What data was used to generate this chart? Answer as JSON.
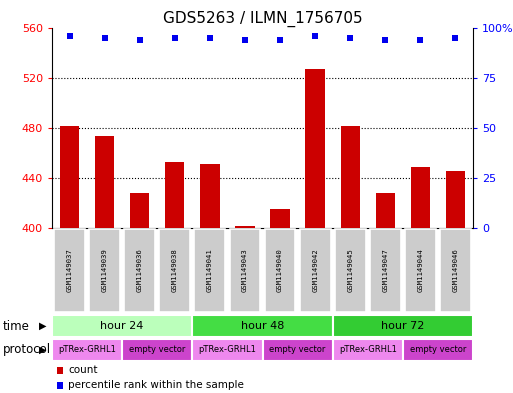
{
  "title": "GDS5263 / ILMN_1756705",
  "samples": [
    "GSM1149037",
    "GSM1149039",
    "GSM1149036",
    "GSM1149038",
    "GSM1149041",
    "GSM1149043",
    "GSM1149040",
    "GSM1149042",
    "GSM1149045",
    "GSM1149047",
    "GSM1149044",
    "GSM1149046"
  ],
  "counts": [
    482,
    474,
    428,
    453,
    451,
    402,
    415,
    527,
    482,
    428,
    449,
    446
  ],
  "percentile_ranks": [
    96,
    95,
    94,
    95,
    95,
    94,
    94,
    96,
    95,
    94,
    94,
    95
  ],
  "ylim_left": [
    400,
    560
  ],
  "ylim_right": [
    0,
    100
  ],
  "yticks_left": [
    400,
    440,
    480,
    520,
    560
  ],
  "yticks_right": [
    0,
    25,
    50,
    75,
    100
  ],
  "bar_color": "#cc0000",
  "dot_color": "#0000ee",
  "bar_bottom": 400,
  "time_groups": [
    {
      "label": "hour 24",
      "start": 0,
      "end": 4,
      "color": "#bbffbb"
    },
    {
      "label": "hour 48",
      "start": 4,
      "end": 8,
      "color": "#44dd44"
    },
    {
      "label": "hour 72",
      "start": 8,
      "end": 12,
      "color": "#33cc33"
    }
  ],
  "protocol_groups": [
    {
      "label": "pTRex-GRHL1",
      "start": 0,
      "end": 2,
      "color": "#ee88ee"
    },
    {
      "label": "empty vector",
      "start": 2,
      "end": 4,
      "color": "#cc44cc"
    },
    {
      "label": "pTRex-GRHL1",
      "start": 4,
      "end": 6,
      "color": "#ee88ee"
    },
    {
      "label": "empty vector",
      "start": 6,
      "end": 8,
      "color": "#cc44cc"
    },
    {
      "label": "pTRex-GRHL1",
      "start": 8,
      "end": 10,
      "color": "#ee88ee"
    },
    {
      "label": "empty vector",
      "start": 10,
      "end": 12,
      "color": "#cc44cc"
    }
  ],
  "sample_box_color": "#cccccc",
  "background_color": "#ffffff"
}
